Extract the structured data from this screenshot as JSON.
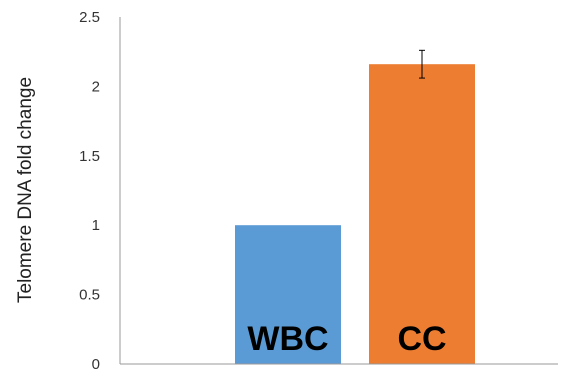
{
  "chart_data": {
    "type": "bar",
    "title": "",
    "xlabel": "",
    "ylabel": "Telomere DNA fold change",
    "ylim": [
      0,
      2.5
    ],
    "yticks": [
      "0",
      "0.5",
      "1",
      "1.5",
      "2",
      "2.5"
    ],
    "categories": [
      "WBC",
      "CC"
    ],
    "values": [
      1.0,
      2.16
    ],
    "errors": [
      0,
      0.1
    ],
    "colors": [
      "#5B9BD5",
      "#ED7D31"
    ],
    "grid": false,
    "legend": "none"
  }
}
